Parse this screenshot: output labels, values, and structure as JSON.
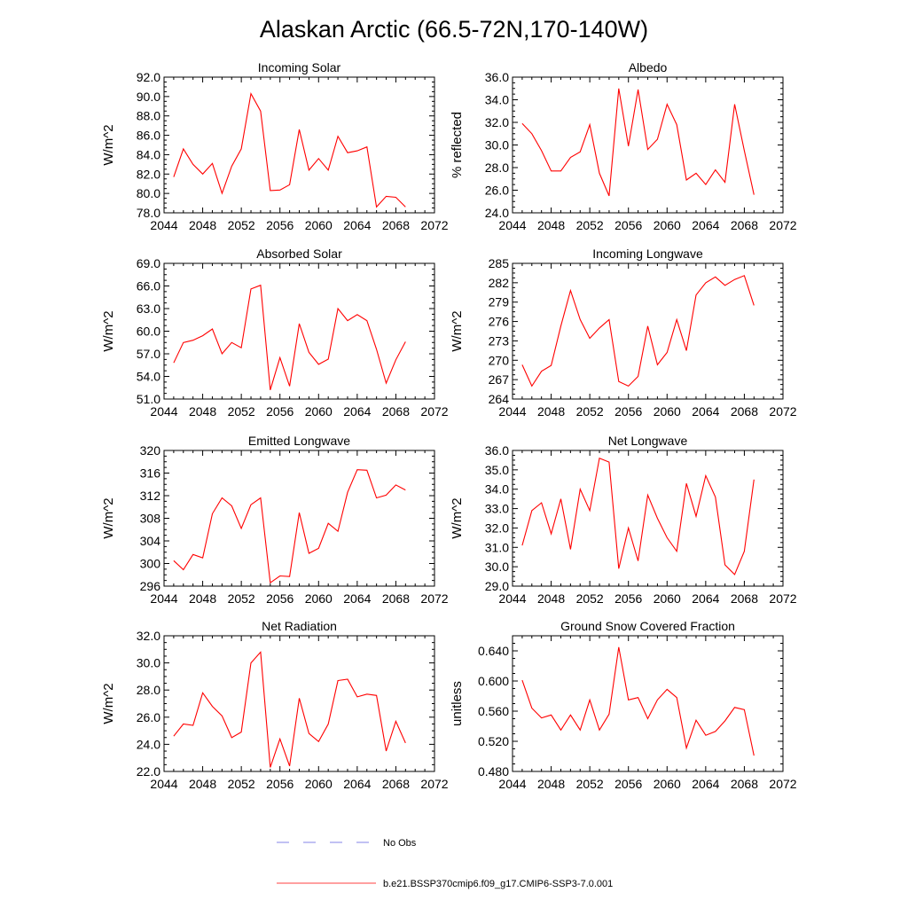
{
  "title": "Alaskan Arctic (66.5-72N,170-140W)",
  "chart_data": [
    {
      "type": "line",
      "title": "Incoming Solar",
      "ylabel": "W/m^2",
      "xlabel": "",
      "xlim": [
        2044,
        2072
      ],
      "ylim": [
        78,
        92
      ],
      "xticks": [
        "2044",
        "2048",
        "2052",
        "2056",
        "2060",
        "2064",
        "2068",
        "2072"
      ],
      "yticks": [
        "78.0",
        "80.0",
        "82.0",
        "84.0",
        "86.0",
        "88.0",
        "90.0",
        "92.0"
      ],
      "x": [
        2045,
        2046,
        2047,
        2048,
        2049,
        2050,
        2051,
        2052,
        2053,
        2054,
        2055,
        2056,
        2057,
        2058,
        2059,
        2060,
        2061,
        2062,
        2063,
        2064,
        2065,
        2066,
        2067,
        2068,
        2069
      ],
      "values": [
        81.7,
        84.6,
        83.0,
        82.0,
        83.1,
        80.0,
        82.8,
        84.6,
        90.3,
        88.5,
        80.3,
        80.35,
        80.9,
        86.6,
        82.4,
        83.6,
        82.4,
        85.9,
        84.2,
        84.4,
        84.8,
        78.6,
        79.7,
        79.6,
        78.6
      ]
    },
    {
      "type": "line",
      "title": "Albedo",
      "ylabel": "% reflected",
      "xlabel": "",
      "xlim": [
        2044,
        2072
      ],
      "ylim": [
        24,
        36
      ],
      "xticks": [
        "2044",
        "2048",
        "2052",
        "2056",
        "2060",
        "2064",
        "2068",
        "2072"
      ],
      "yticks": [
        "24.0",
        "26.0",
        "28.0",
        "30.0",
        "32.0",
        "34.0",
        "36.0"
      ],
      "x": [
        2045,
        2046,
        2047,
        2048,
        2049,
        2050,
        2051,
        2052,
        2053,
        2054,
        2055,
        2056,
        2057,
        2058,
        2059,
        2060,
        2061,
        2062,
        2063,
        2064,
        2065,
        2066,
        2067,
        2068,
        2069
      ],
      "values": [
        31.9,
        31.0,
        29.5,
        27.7,
        27.7,
        28.9,
        29.4,
        31.8,
        27.5,
        25.5,
        35.0,
        29.9,
        34.9,
        29.6,
        30.5,
        33.6,
        31.8,
        26.9,
        27.5,
        26.5,
        27.8,
        26.7,
        33.6,
        29.5,
        25.6
      ]
    },
    {
      "type": "line",
      "title": "Absorbed Solar",
      "ylabel": "W/m^2",
      "xlabel": "",
      "xlim": [
        2044,
        2072
      ],
      "ylim": [
        51,
        69
      ],
      "xticks": [
        "2044",
        "2048",
        "2052",
        "2056",
        "2060",
        "2064",
        "2068",
        "2072"
      ],
      "yticks": [
        "51.0",
        "54.0",
        "57.0",
        "60.0",
        "63.0",
        "66.0",
        "69.0"
      ],
      "x": [
        2045,
        2046,
        2047,
        2048,
        2049,
        2050,
        2051,
        2052,
        2053,
        2054,
        2055,
        2056,
        2057,
        2058,
        2059,
        2060,
        2061,
        2062,
        2063,
        2064,
        2065,
        2066,
        2067,
        2068,
        2069
      ],
      "values": [
        55.8,
        58.5,
        58.8,
        59.4,
        60.3,
        57.0,
        58.5,
        57.8,
        65.6,
        66.1,
        52.2,
        56.5,
        52.7,
        61.0,
        57.2,
        55.6,
        56.3,
        63.0,
        61.4,
        62.2,
        61.4,
        57.6,
        53.1,
        56.2,
        58.6
      ]
    },
    {
      "type": "line",
      "title": "Incoming Longwave",
      "ylabel": "W/m^2",
      "xlabel": "",
      "xlim": [
        2044,
        2072
      ],
      "ylim": [
        264,
        285
      ],
      "xticks": [
        "2044",
        "2048",
        "2052",
        "2056",
        "2060",
        "2064",
        "2068",
        "2072"
      ],
      "yticks": [
        "264",
        "267",
        "270",
        "273",
        "276",
        "279",
        "282",
        "285"
      ],
      "x": [
        2045,
        2046,
        2047,
        2048,
        2049,
        2050,
        2051,
        2052,
        2053,
        2054,
        2055,
        2056,
        2057,
        2058,
        2059,
        2060,
        2061,
        2062,
        2063,
        2064,
        2065,
        2066,
        2067,
        2068,
        2069
      ],
      "values": [
        269.3,
        266.0,
        268.3,
        269.2,
        275.3,
        280.8,
        276.3,
        273.4,
        275.0,
        276.3,
        266.7,
        266.0,
        267.5,
        275.3,
        269.3,
        271.2,
        276.3,
        271.5,
        280.1,
        282.0,
        282.9,
        281.6,
        282.5,
        283.1,
        278.5
      ]
    },
    {
      "type": "line",
      "title": "Emitted Longwave",
      "ylabel": "W/m^2",
      "xlabel": "",
      "xlim": [
        2044,
        2072
      ],
      "ylim": [
        296,
        320
      ],
      "xticks": [
        "2044",
        "2048",
        "2052",
        "2056",
        "2060",
        "2064",
        "2068",
        "2072"
      ],
      "yticks": [
        "296",
        "300",
        "304",
        "308",
        "312",
        "316",
        "320"
      ],
      "x": [
        2045,
        2046,
        2047,
        2048,
        2049,
        2050,
        2051,
        2052,
        2053,
        2054,
        2055,
        2056,
        2057,
        2058,
        2059,
        2060,
        2061,
        2062,
        2063,
        2064,
        2065,
        2066,
        2067,
        2068,
        2069
      ],
      "values": [
        300.5,
        298.9,
        301.6,
        301.0,
        308.8,
        311.6,
        310.2,
        306.2,
        310.4,
        311.6,
        296.6,
        297.8,
        297.7,
        309.0,
        301.8,
        302.7,
        307.1,
        305.7,
        312.6,
        316.6,
        316.5,
        311.6,
        312.1,
        313.9,
        313.0
      ]
    },
    {
      "type": "line",
      "title": "Net Longwave",
      "ylabel": "W/m^2",
      "xlabel": "",
      "xlim": [
        2044,
        2072
      ],
      "ylim": [
        29,
        36
      ],
      "xticks": [
        "2044",
        "2048",
        "2052",
        "2056",
        "2060",
        "2064",
        "2068",
        "2072"
      ],
      "yticks": [
        "29.0",
        "30.0",
        "31.0",
        "32.0",
        "33.0",
        "34.0",
        "35.0",
        "36.0"
      ],
      "x": [
        2045,
        2046,
        2047,
        2048,
        2049,
        2050,
        2051,
        2052,
        2053,
        2054,
        2055,
        2056,
        2057,
        2058,
        2059,
        2060,
        2061,
        2062,
        2063,
        2064,
        2065,
        2066,
        2067,
        2068,
        2069
      ],
      "values": [
        31.1,
        32.9,
        33.3,
        31.7,
        33.5,
        30.9,
        34.0,
        32.9,
        35.6,
        35.4,
        29.9,
        32.0,
        30.3,
        33.7,
        32.5,
        31.5,
        30.8,
        34.3,
        32.6,
        34.7,
        33.6,
        30.1,
        29.6,
        30.8,
        34.5
      ]
    },
    {
      "type": "line",
      "title": "Net Radiation",
      "ylabel": "W/m^2",
      "xlabel": "",
      "xlim": [
        2044,
        2072
      ],
      "ylim": [
        22,
        32
      ],
      "xticks": [
        "2044",
        "2048",
        "2052",
        "2056",
        "2060",
        "2064",
        "2068",
        "2072"
      ],
      "yticks": [
        "22.0",
        "24.0",
        "26.0",
        "28.0",
        "30.0",
        "32.0"
      ],
      "x": [
        2045,
        2046,
        2047,
        2048,
        2049,
        2050,
        2051,
        2052,
        2053,
        2054,
        2055,
        2056,
        2057,
        2058,
        2059,
        2060,
        2061,
        2062,
        2063,
        2064,
        2065,
        2066,
        2067,
        2068,
        2069
      ],
      "values": [
        24.6,
        25.5,
        25.4,
        27.8,
        26.8,
        26.1,
        24.5,
        24.9,
        30.0,
        30.8,
        22.3,
        24.4,
        22.4,
        27.4,
        24.8,
        24.2,
        25.5,
        28.7,
        28.8,
        27.5,
        27.7,
        27.6,
        23.5,
        25.7,
        24.1
      ]
    },
    {
      "type": "line",
      "title": "Ground Snow Covered Fraction",
      "ylabel": "unitless",
      "xlabel": "",
      "xlim": [
        2044,
        2072
      ],
      "ylim": [
        0.48,
        0.66
      ],
      "xticks": [
        "2044",
        "2048",
        "2052",
        "2056",
        "2060",
        "2064",
        "2068",
        "2072"
      ],
      "yticks": [
        "0.480",
        "0.520",
        "0.560",
        "0.600",
        "0.640"
      ],
      "x": [
        2045,
        2046,
        2047,
        2048,
        2049,
        2050,
        2051,
        2052,
        2053,
        2054,
        2055,
        2056,
        2057,
        2058,
        2059,
        2060,
        2061,
        2062,
        2063,
        2064,
        2065,
        2066,
        2067,
        2068,
        2069
      ],
      "values": [
        0.601,
        0.564,
        0.551,
        0.555,
        0.535,
        0.555,
        0.535,
        0.575,
        0.535,
        0.556,
        0.645,
        0.575,
        0.578,
        0.55,
        0.575,
        0.589,
        0.578,
        0.511,
        0.548,
        0.528,
        0.533,
        0.547,
        0.565,
        0.562,
        0.501
      ]
    }
  ],
  "legend": [
    {
      "label": "No Obs",
      "color": "#5b5be0",
      "style": "dashed"
    },
    {
      "label": "b.e21.BSSP370cmip6.f09_g17.CMIP6-SSP3-7.0.001",
      "color": "#ff0000",
      "style": "solid"
    }
  ],
  "colors": {
    "series": "#ff0000",
    "obs": "#5b5be0",
    "axis": "#000000"
  }
}
